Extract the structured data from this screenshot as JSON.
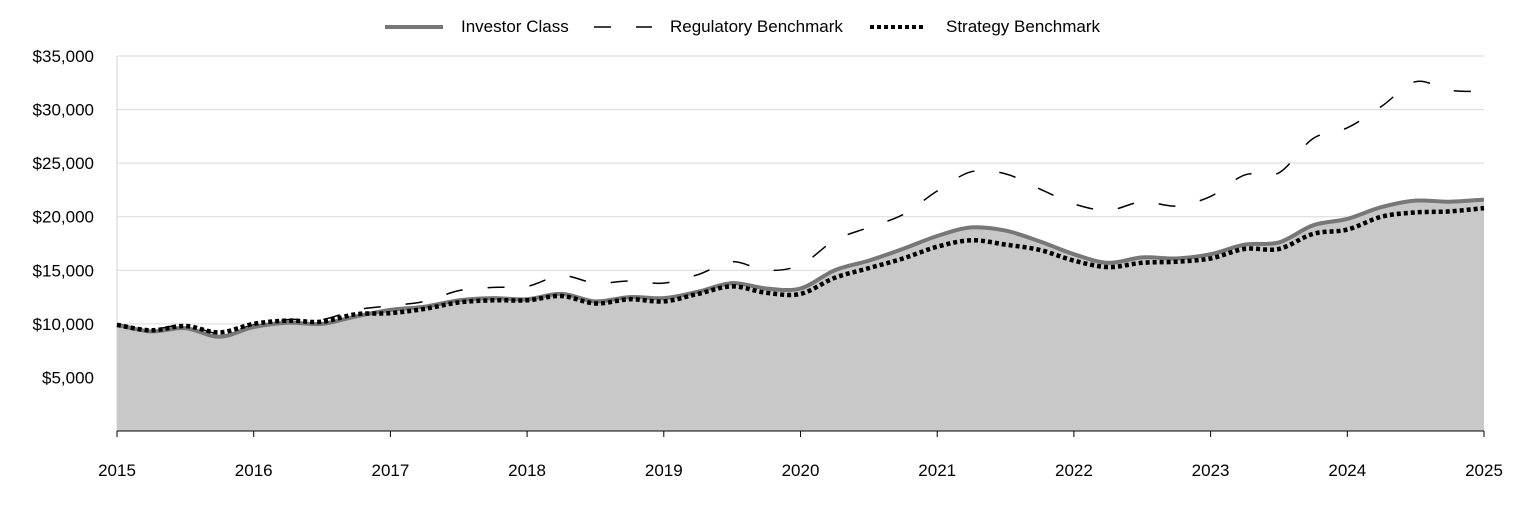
{
  "chart_data": {
    "type": "area",
    "x_unit": "year",
    "x_ticks": [
      "2015",
      "2016",
      "2017",
      "2018",
      "2019",
      "2020",
      "2021",
      "2022",
      "2023",
      "2024",
      "2025"
    ],
    "ylim": [
      0,
      35000
    ],
    "y_ticks": [
      5000,
      10000,
      15000,
      20000,
      25000,
      30000,
      35000
    ],
    "y_tick_labels": [
      "$5,000",
      "$10,000",
      "$15,000",
      "$20,000",
      "$25,000",
      "$30,000",
      "$35,000"
    ],
    "grid": true,
    "legend_position": "top-center",
    "x": [
      2015.0,
      2015.25,
      2015.5,
      2015.75,
      2016.0,
      2016.25,
      2016.5,
      2016.75,
      2017.0,
      2017.25,
      2017.5,
      2017.75,
      2018.0,
      2018.25,
      2018.5,
      2018.75,
      2019.0,
      2019.25,
      2019.5,
      2019.75,
      2020.0,
      2020.25,
      2020.5,
      2020.75,
      2021.0,
      2021.25,
      2021.5,
      2021.75,
      2022.0,
      2022.25,
      2022.5,
      2022.75,
      2023.0,
      2023.25,
      2023.5,
      2023.75,
      2024.0,
      2024.25,
      2024.5,
      2024.75,
      2025.0
    ],
    "series": [
      {
        "name": "Investor Class",
        "style": "solid-area",
        "color": "#777777",
        "fill": "#c8c8c8",
        "values": [
          9900,
          9300,
          9600,
          8800,
          9700,
          10100,
          10000,
          10700,
          11300,
          11600,
          12200,
          12400,
          12300,
          12800,
          12100,
          12500,
          12400,
          13000,
          13800,
          13300,
          13300,
          15000,
          15900,
          17000,
          18200,
          19000,
          18700,
          17700,
          16500,
          15700,
          16200,
          16100,
          16500,
          17400,
          17600,
          19200,
          19800,
          20900,
          21500,
          21400,
          21600
        ]
      },
      {
        "name": "Regulatory Benchmark",
        "style": "dashed",
        "color": "#000000",
        "values": [
          10000,
          9500,
          9900,
          9100,
          9900,
          10400,
          10400,
          11300,
          11700,
          12100,
          13100,
          13400,
          13500,
          14500,
          13800,
          14000,
          13800,
          14600,
          15800,
          15000,
          15500,
          17800,
          19000,
          20200,
          22400,
          24200,
          24000,
          22600,
          21200,
          20600,
          21400,
          21000,
          21900,
          23900,
          24100,
          27300,
          28300,
          30300,
          32600,
          31800,
          31700
        ]
      },
      {
        "name": "Strategy Benchmark",
        "style": "dotted",
        "color": "#000000",
        "values": [
          9900,
          9400,
          9800,
          9200,
          10000,
          10300,
          10200,
          10900,
          11000,
          11400,
          12000,
          12200,
          12200,
          12600,
          11900,
          12300,
          12100,
          12800,
          13500,
          12900,
          12800,
          14300,
          15200,
          16100,
          17200,
          17800,
          17400,
          16900,
          15900,
          15300,
          15700,
          15800,
          16100,
          17000,
          17000,
          18400,
          18800,
          20000,
          20400,
          20500,
          20800
        ]
      }
    ]
  }
}
